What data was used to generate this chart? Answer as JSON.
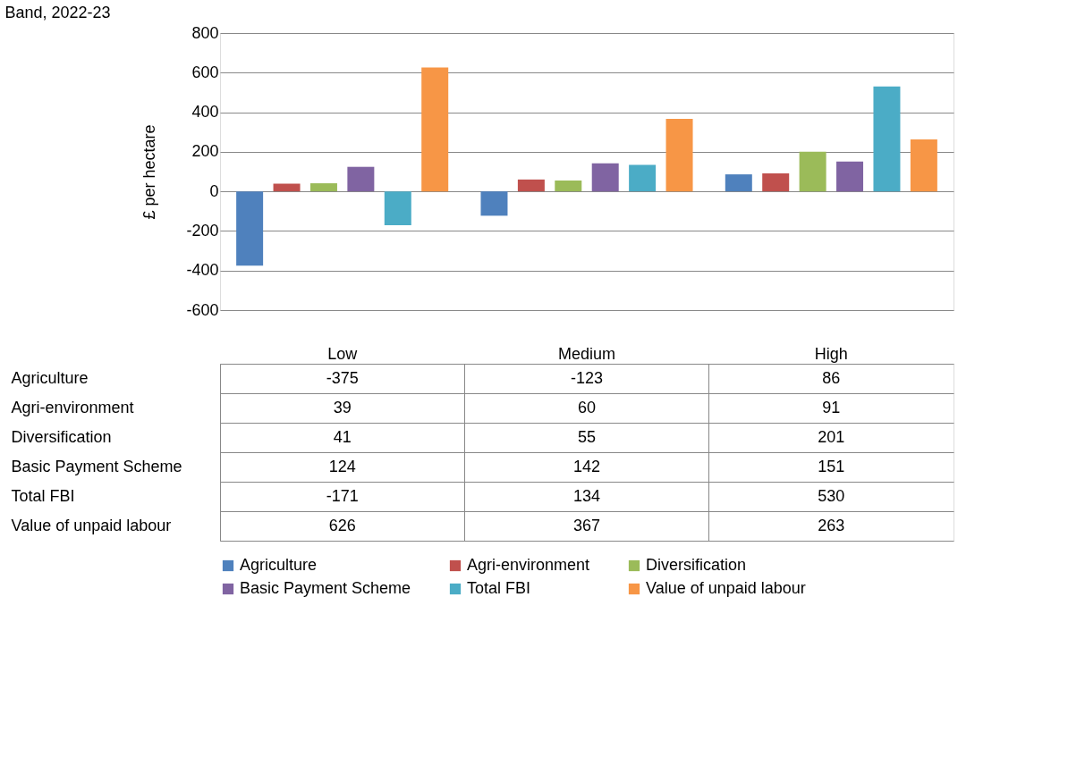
{
  "chart_data": {
    "type": "bar",
    "title": "Band, 2022-23",
    "ylabel": "£ per hectare",
    "categories": [
      "Low",
      "Medium",
      "High"
    ],
    "series": [
      {
        "name": "Agriculture",
        "color": "#4f81bd",
        "values": [
          -375,
          -123,
          86
        ]
      },
      {
        "name": "Agri-environment",
        "color": "#c0504d",
        "values": [
          39,
          60,
          91
        ]
      },
      {
        "name": "Diversification",
        "color": "#9bbb59",
        "values": [
          41,
          55,
          201
        ]
      },
      {
        "name": "Basic Payment Scheme",
        "color": "#8064a2",
        "values": [
          124,
          142,
          151
        ]
      },
      {
        "name": "Total FBI",
        "color": "#4bacc6",
        "values": [
          -171,
          134,
          530
        ]
      },
      {
        "name": "Value of unpaid labour",
        "color": "#f79646",
        "values": [
          626,
          367,
          263
        ]
      }
    ],
    "ylim": [
      -600,
      800
    ],
    "yticks": [
      -600,
      -400,
      -200,
      0,
      200,
      400,
      600,
      800
    ],
    "grid": "y",
    "legend": "bottom",
    "data_labels": true
  }
}
